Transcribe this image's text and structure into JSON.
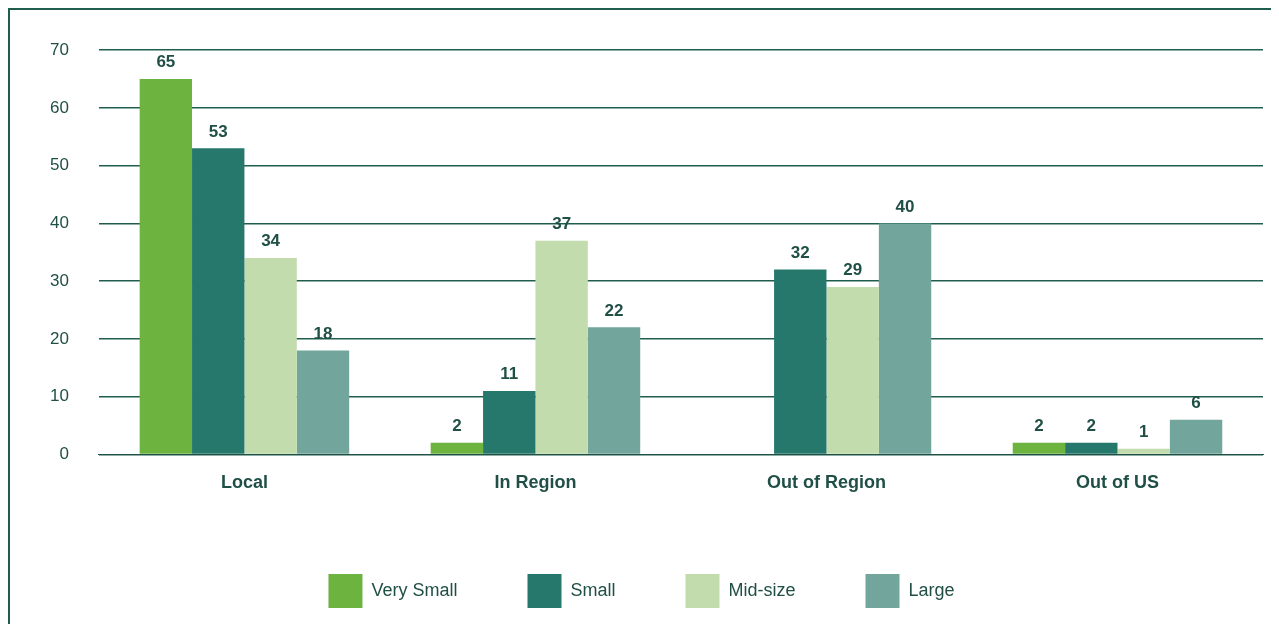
{
  "chart_data": {
    "type": "bar",
    "categories": [
      "Local",
      "In Region",
      "Out of Region",
      "Out of US"
    ],
    "series": [
      {
        "name": "Very Small",
        "color": "#6db33f",
        "values": [
          65,
          2,
          null,
          2
        ]
      },
      {
        "name": "Small",
        "color": "#25786b",
        "values": [
          53,
          11,
          32,
          2
        ]
      },
      {
        "name": "Mid-size",
        "color": "#c3dcad",
        "values": [
          34,
          37,
          29,
          1
        ]
      },
      {
        "name": "Large",
        "color": "#72a59b",
        "values": [
          18,
          22,
          40,
          6
        ]
      }
    ],
    "ylim": [
      0,
      70
    ],
    "yticks": [
      0,
      10,
      20,
      30,
      40,
      50,
      60,
      70
    ],
    "grid": "y",
    "legend": "bottom",
    "data_labels": true
  }
}
